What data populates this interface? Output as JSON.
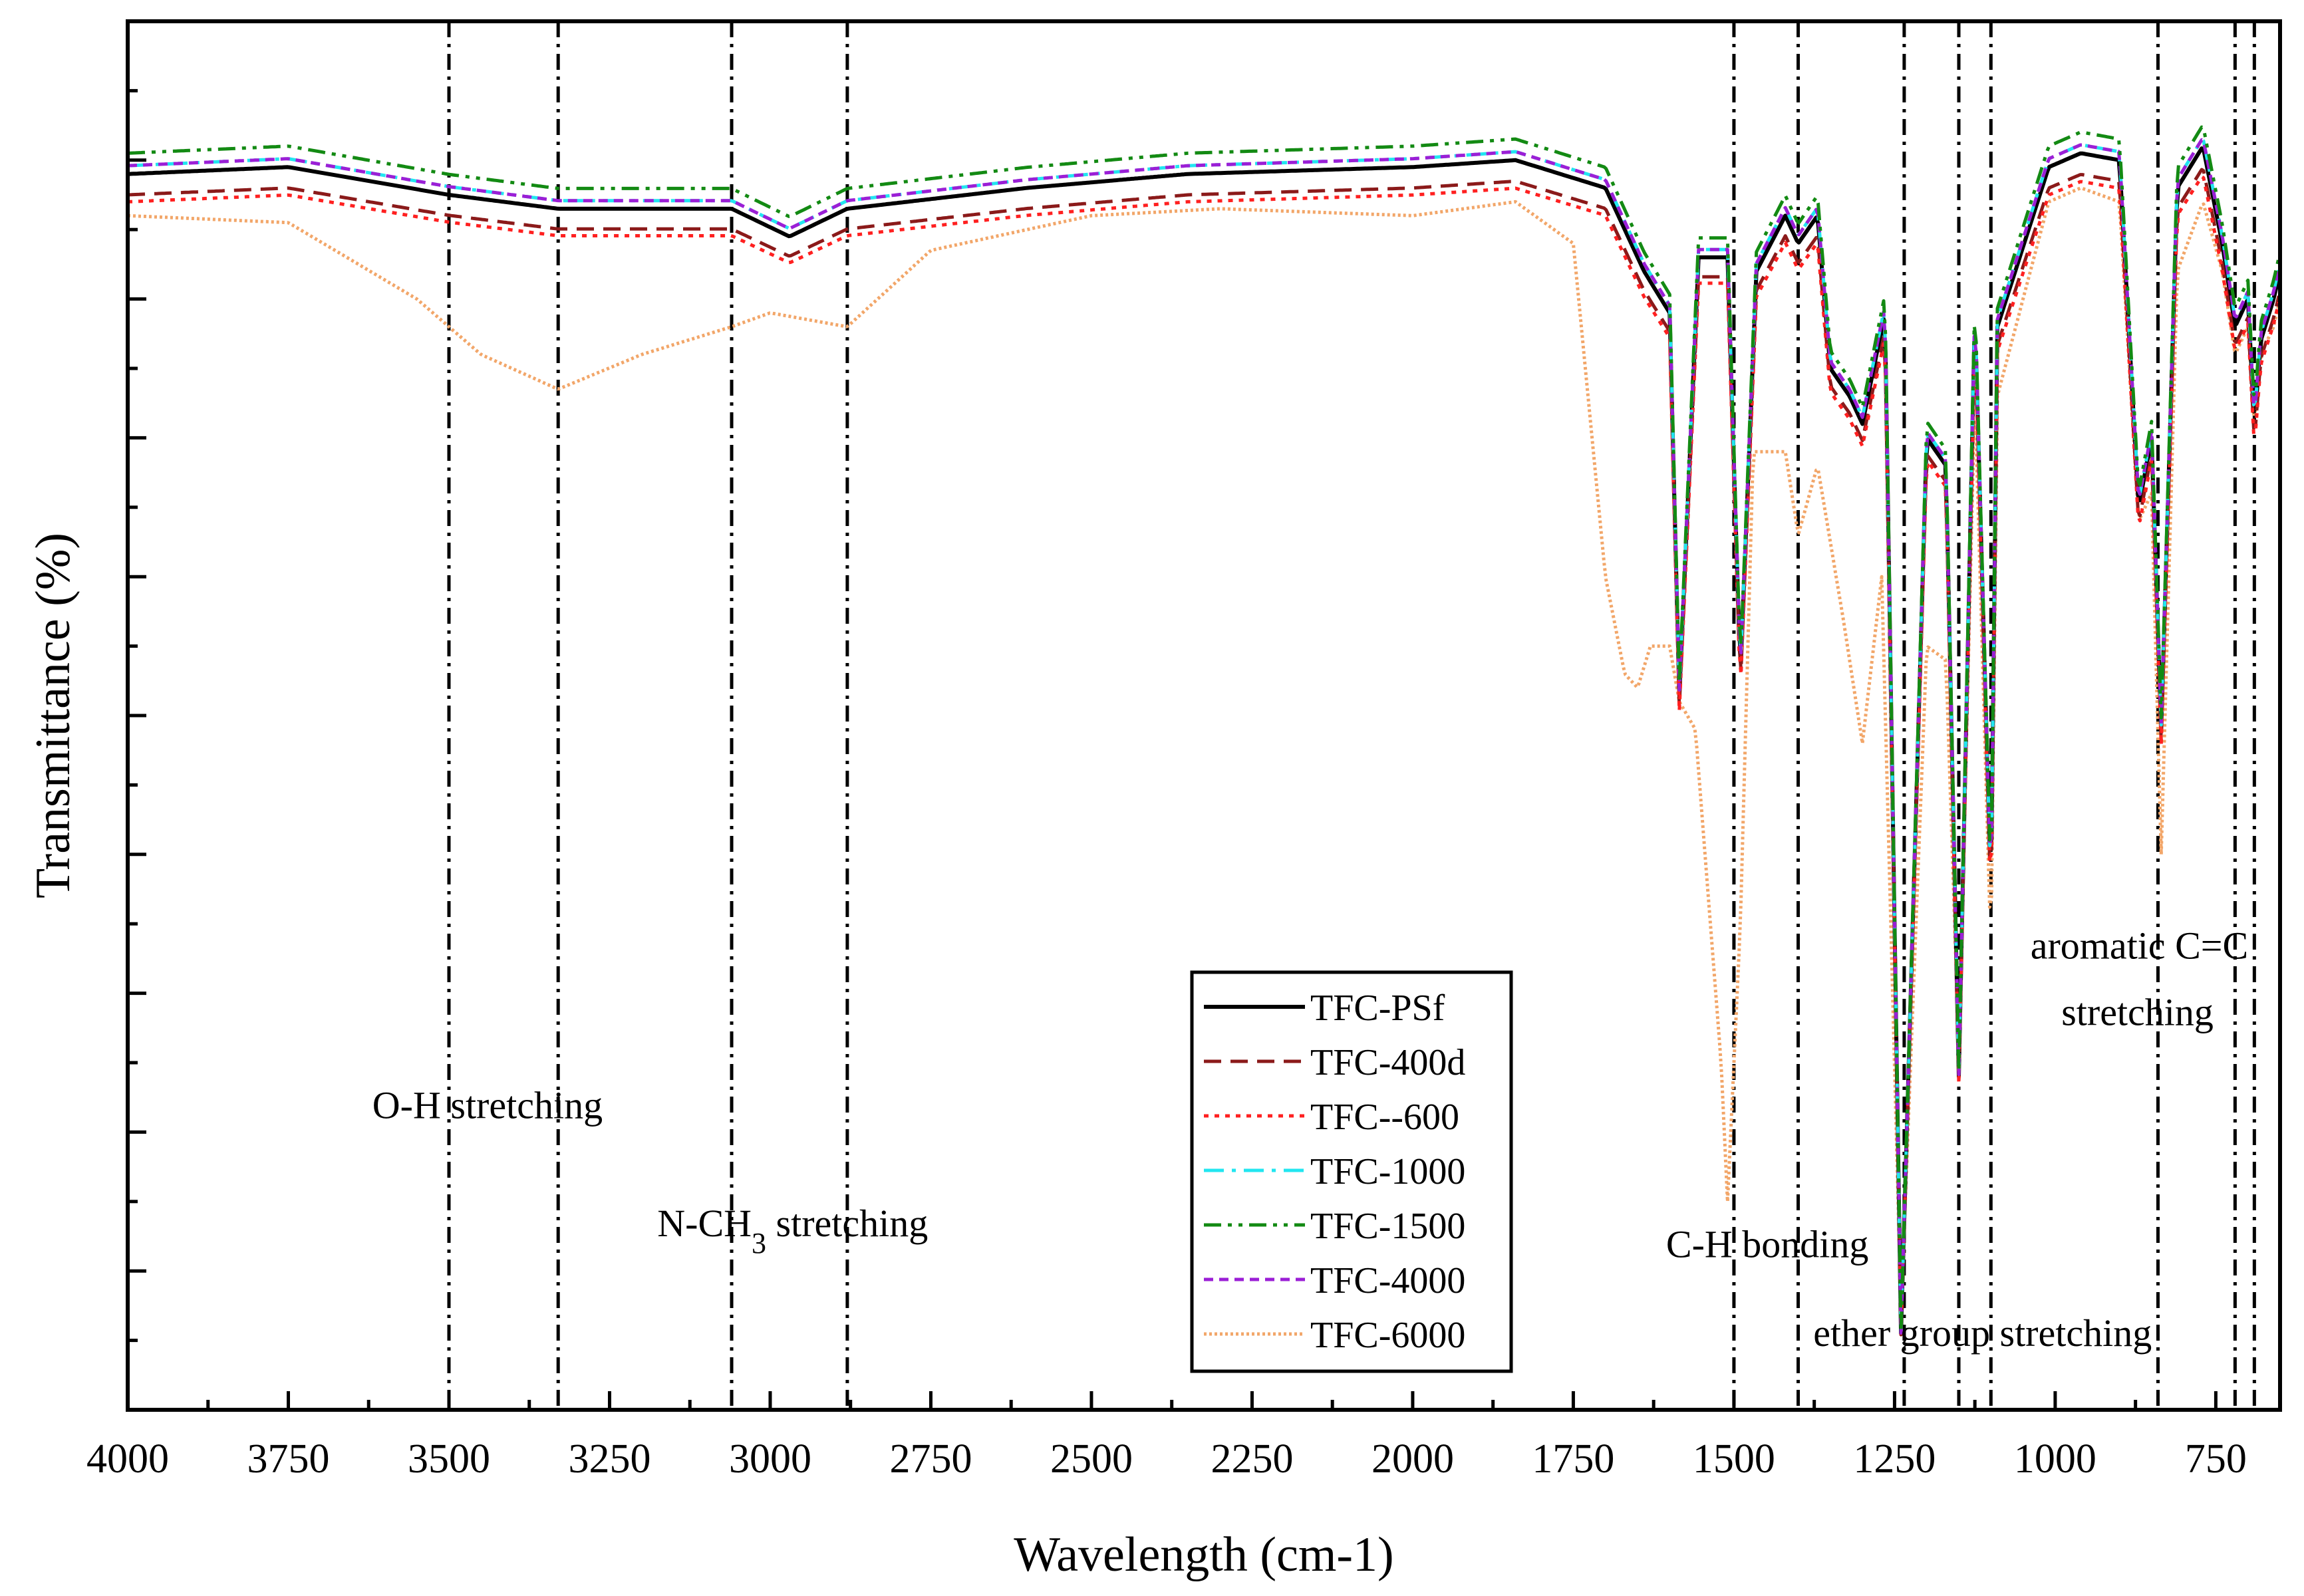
{
  "chart_data": {
    "type": "line",
    "xlabel": "Wavelength (cm-1)",
    "ylabel": "Transmittance (%)",
    "xlim": [
      4000,
      650
    ],
    "x_reversed": true,
    "xticks": [
      4000,
      3750,
      3500,
      3250,
      3000,
      2750,
      2500,
      2250,
      2000,
      1750,
      1500,
      1250,
      1000,
      750
    ],
    "ylim": [
      0,
      100
    ],
    "y_tick_labels_shown": false,
    "grid": false,
    "legend_position": "bottom-center",
    "reference_lines": [
      3500,
      3330,
      3060,
      2880,
      1500,
      1400,
      1235,
      1150,
      1100,
      840,
      720,
      690
    ],
    "annotations": [
      {
        "text": "O-H stretching",
        "x": 3440,
        "y": 21
      },
      {
        "text": "N-CH",
        "sub": "3",
        "suffix": " stretching",
        "x": 2965,
        "y": 12.5
      },
      {
        "text": "C-H bonding",
        "x": 1448,
        "y": 11
      },
      {
        "text": "ether group stretching",
        "x": 1113,
        "y": 4.6
      },
      {
        "text": "aromatic C=C",
        "x": 869,
        "y": 32.5
      },
      {
        "text": "stretching",
        "x": 872,
        "y": 27.7
      }
    ],
    "series": [
      {
        "name": "TFC-PSf",
        "color": "#000000",
        "dash": "solid",
        "offset": 0
      },
      {
        "name": "TFC-400d",
        "color": "#8b1a1a",
        "dash": "dash",
        "offset": -1.5
      },
      {
        "name": "TFC--600",
        "color": "#ff2020",
        "dash": "dot",
        "offset": -2
      },
      {
        "name": "TFC-1000",
        "color": "#22e6f0",
        "dash": "dashdot",
        "offset": 0.6
      },
      {
        "name": "TFC-1500",
        "color": "#138a13",
        "dash": "dashdotdot",
        "offset": 1.5
      },
      {
        "name": "TFC-4000",
        "color": "#9b1fd6",
        "dash": "shortdash",
        "offset": 0.6
      },
      {
        "name": "TFC-6000",
        "color": "#f2a669",
        "dash": "fine",
        "offset": null
      }
    ],
    "base_spectrum": {
      "x": [
        4000,
        3750,
        3500,
        3330,
        3060,
        2970,
        2880,
        2600,
        2350,
        2000,
        1840,
        1700,
        1650,
        1640,
        1600,
        1585,
        1555,
        1510,
        1490,
        1465,
        1420,
        1400,
        1370,
        1350,
        1320,
        1300,
        1265,
        1240,
        1200,
        1170,
        1150,
        1125,
        1100,
        1090,
        1010,
        960,
        900,
        870,
        850,
        835,
        810,
        770,
        740,
        720,
        700,
        690,
        680,
        660,
        650
      ],
      "y": [
        89,
        89.5,
        87.5,
        86.5,
        86.5,
        84.5,
        86.5,
        88,
        89,
        89.5,
        90,
        88,
        83,
        82,
        79,
        51.5,
        83,
        83,
        53,
        82,
        86,
        84,
        86,
        75,
        73,
        71,
        79,
        5.5,
        70,
        68,
        24,
        79,
        37,
        78,
        89.5,
        90.5,
        90,
        65,
        70,
        49,
        88,
        91,
        84,
        78,
        80,
        71,
        77,
        80,
        82
      ]
    },
    "tfc6000_spectrum": {
      "x": [
        4000,
        3750,
        3550,
        3450,
        3330,
        3200,
        3060,
        3000,
        2880,
        2750,
        2500,
        2300,
        2000,
        1840,
        1750,
        1700,
        1670,
        1650,
        1630,
        1600,
        1585,
        1560,
        1520,
        1510,
        1490,
        1470,
        1420,
        1400,
        1370,
        1330,
        1300,
        1270,
        1240,
        1200,
        1170,
        1150,
        1125,
        1100,
        1090,
        1010,
        960,
        900,
        870,
        850,
        835,
        810,
        770,
        740,
        720,
        700,
        690,
        680,
        660,
        650
      ],
      "y": [
        86,
        85.5,
        80,
        76,
        73.5,
        76,
        78,
        79,
        78,
        83.5,
        86,
        86.5,
        86,
        87,
        84,
        60,
        53,
        52,
        55,
        55,
        51,
        49,
        25,
        15,
        35,
        69,
        69,
        63,
        68,
        57,
        48,
        60,
        7,
        55,
        54,
        26,
        73,
        33,
        73,
        87,
        88,
        87,
        64,
        66,
        40,
        82,
        87,
        82,
        76,
        78,
        71,
        76,
        78,
        80
      ]
    }
  }
}
